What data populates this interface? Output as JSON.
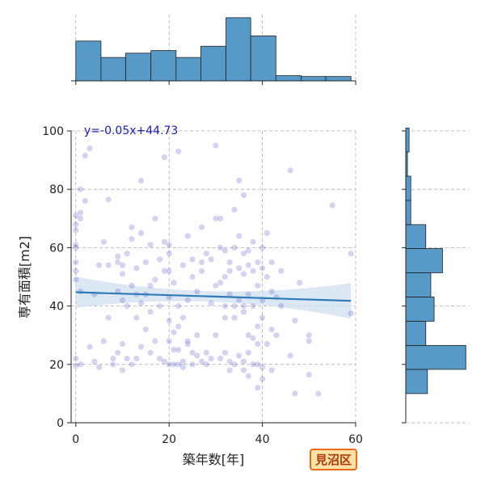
{
  "chart_data": {
    "type": "scatter",
    "xlabel": "築年数[年]",
    "ylabel": "専有面積[m2]",
    "xlim": [
      -1,
      60
    ],
    "ylim": [
      0,
      100
    ],
    "x_ticks": [
      "0",
      "20",
      "40",
      "60"
    ],
    "y_ticks": [
      "0",
      "20",
      "40",
      "60",
      "80",
      "100"
    ],
    "grid": true,
    "annotation": "y=-0.05x+44.73",
    "regression": {
      "slope": -0.05,
      "intercept": 44.73,
      "x_range": [
        0,
        59
      ]
    },
    "point_color": "#3a3ac0",
    "line_color": "#2f7ab8",
    "band_color": "#cfe0ef",
    "hist_color": "#5799c7",
    "x_histogram": {
      "bin_edges": [
        0,
        5.4,
        10.7,
        16.1,
        21.5,
        26.8,
        32.2,
        37.5,
        42.9,
        48.3,
        53.6,
        59
      ],
      "counts": [
        46,
        27,
        32,
        35,
        27,
        40,
        73,
        52,
        6,
        5,
        5
      ]
    },
    "y_histogram": {
      "bin_edges": [
        10,
        18.3,
        26.5,
        34.8,
        43.1,
        51.4,
        59.7,
        67.9,
        76.2,
        84.5,
        92.8,
        101
      ],
      "counts": [
        13,
        36,
        12,
        17,
        15,
        22,
        12,
        3,
        3,
        1,
        2
      ]
    },
    "points": [
      [
        0,
        19.5
      ],
      [
        0,
        22
      ],
      [
        0,
        49
      ],
      [
        0,
        52
      ],
      [
        0,
        55
      ],
      [
        0,
        60
      ],
      [
        0,
        61
      ],
      [
        0,
        66
      ],
      [
        0,
        68
      ],
      [
        0,
        71
      ],
      [
        1,
        72
      ],
      [
        1,
        80
      ],
      [
        1,
        70
      ],
      [
        1,
        45
      ],
      [
        1,
        20
      ],
      [
        2,
        91.5
      ],
      [
        2,
        76
      ],
      [
        3,
        94
      ],
      [
        3,
        26
      ],
      [
        4,
        21
      ],
      [
        4,
        44
      ],
      [
        5,
        19
      ],
      [
        5,
        54
      ],
      [
        6,
        62
      ],
      [
        6,
        28
      ],
      [
        7,
        76.5
      ],
      [
        7,
        54
      ],
      [
        7,
        36
      ],
      [
        8,
        20
      ],
      [
        8,
        22
      ],
      [
        9,
        24
      ],
      [
        9,
        45
      ],
      [
        9,
        55
      ],
      [
        9,
        57
      ],
      [
        10,
        27
      ],
      [
        10,
        42
      ],
      [
        10,
        51
      ],
      [
        10,
        18
      ],
      [
        10,
        54
      ],
      [
        11,
        22
      ],
      [
        11,
        40
      ],
      [
        11,
        58
      ],
      [
        12,
        20
      ],
      [
        12,
        47
      ],
      [
        12,
        63
      ],
      [
        12,
        67
      ],
      [
        13,
        22
      ],
      [
        13,
        36
      ],
      [
        13,
        53
      ],
      [
        13,
        44
      ],
      [
        14,
        83
      ],
      [
        14,
        65
      ],
      [
        14,
        41
      ],
      [
        14,
        26
      ],
      [
        15,
        32
      ],
      [
        15,
        44
      ],
      [
        15,
        55
      ],
      [
        16,
        38
      ],
      [
        16,
        47
      ],
      [
        16,
        61
      ],
      [
        16,
        24
      ],
      [
        17,
        28
      ],
      [
        17,
        49
      ],
      [
        17,
        70
      ],
      [
        18,
        22
      ],
      [
        18,
        40
      ],
      [
        18,
        56
      ],
      [
        19,
        91
      ],
      [
        19,
        21
      ],
      [
        19,
        52
      ],
      [
        19,
        62
      ],
      [
        20,
        20
      ],
      [
        20,
        28
      ],
      [
        20,
        35
      ],
      [
        20,
        43
      ],
      [
        20,
        52
      ],
      [
        20,
        58
      ],
      [
        20,
        61
      ],
      [
        21,
        25
      ],
      [
        21,
        31
      ],
      [
        21,
        20
      ],
      [
        21,
        48
      ],
      [
        22,
        20
      ],
      [
        22,
        25
      ],
      [
        22,
        33
      ],
      [
        22,
        40
      ],
      [
        22,
        93
      ],
      [
        23,
        21
      ],
      [
        23,
        36
      ],
      [
        23,
        54
      ],
      [
        23,
        19
      ],
      [
        24,
        27
      ],
      [
        24,
        28
      ],
      [
        24,
        42
      ],
      [
        24,
        64
      ],
      [
        25,
        20
      ],
      [
        25,
        24
      ],
      [
        25,
        50
      ],
      [
        25,
        56
      ],
      [
        26,
        23
      ],
      [
        26,
        30
      ],
      [
        26,
        45
      ],
      [
        27,
        21
      ],
      [
        27,
        55
      ],
      [
        27,
        67
      ],
      [
        27,
        52
      ],
      [
        28,
        20
      ],
      [
        28,
        24
      ],
      [
        28,
        58
      ],
      [
        29,
        22
      ],
      [
        29,
        41
      ],
      [
        29,
        56
      ],
      [
        30,
        70
      ],
      [
        30,
        95
      ],
      [
        30,
        30
      ],
      [
        30,
        47
      ],
      [
        31,
        22
      ],
      [
        31,
        48
      ],
      [
        31,
        60
      ],
      [
        31,
        70
      ],
      [
        32,
        24
      ],
      [
        32,
        36
      ],
      [
        32,
        50
      ],
      [
        32,
        59
      ],
      [
        32,
        40
      ],
      [
        33,
        18
      ],
      [
        33,
        21
      ],
      [
        33,
        44
      ],
      [
        33,
        52
      ],
      [
        33,
        55
      ],
      [
        34,
        20
      ],
      [
        34,
        36
      ],
      [
        34,
        40
      ],
      [
        34,
        60
      ],
      [
        34,
        73
      ],
      [
        35,
        23
      ],
      [
        35,
        42
      ],
      [
        35,
        53
      ],
      [
        35,
        64
      ],
      [
        35,
        83
      ],
      [
        36,
        18
      ],
      [
        36,
        21
      ],
      [
        36,
        38
      ],
      [
        36,
        40
      ],
      [
        36,
        51
      ],
      [
        36,
        58
      ],
      [
        36,
        78
      ],
      [
        37,
        16
      ],
      [
        37,
        24
      ],
      [
        37,
        30
      ],
      [
        37,
        44
      ],
      [
        37,
        54
      ],
      [
        37,
        59
      ],
      [
        38,
        20
      ],
      [
        38,
        29
      ],
      [
        38,
        40
      ],
      [
        38,
        52
      ],
      [
        38,
        62
      ],
      [
        39,
        12
      ],
      [
        39,
        20
      ],
      [
        39,
        27
      ],
      [
        39,
        33
      ],
      [
        39,
        47
      ],
      [
        39,
        55
      ],
      [
        40,
        15
      ],
      [
        40,
        19
      ],
      [
        40,
        36
      ],
      [
        40,
        42
      ],
      [
        40,
        53
      ],
      [
        40,
        60
      ],
      [
        41,
        27
      ],
      [
        41,
        50
      ],
      [
        41,
        65
      ],
      [
        42,
        18
      ],
      [
        42,
        32
      ],
      [
        42,
        45
      ],
      [
        42,
        55
      ],
      [
        43,
        30
      ],
      [
        43,
        43
      ],
      [
        44,
        40
      ],
      [
        44,
        52
      ],
      [
        46,
        23
      ],
      [
        46,
        86.5
      ],
      [
        47,
        10
      ],
      [
        47,
        35
      ],
      [
        48,
        48
      ],
      [
        50,
        16.5
      ],
      [
        50,
        28
      ],
      [
        50,
        30
      ],
      [
        52,
        10
      ],
      [
        55,
        74.5
      ],
      [
        59,
        37.5
      ],
      [
        59,
        58
      ]
    ]
  },
  "badge": {
    "label": "見沼区"
  }
}
